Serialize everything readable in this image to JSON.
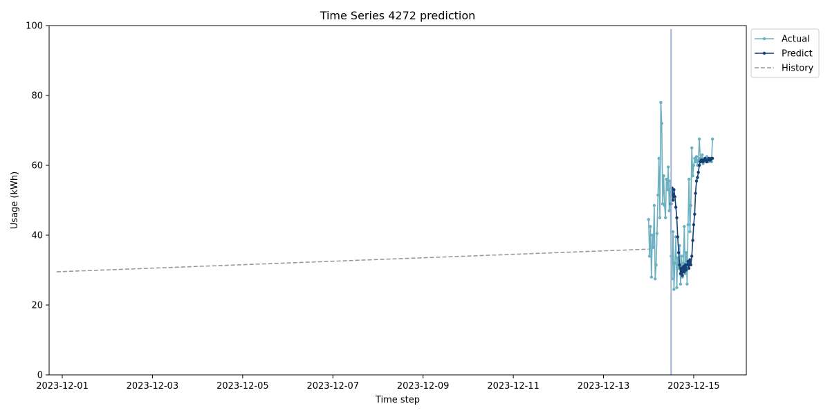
{
  "chart_data": {
    "type": "line",
    "title": "Time Series 4272 prediction",
    "xlabel": "Time step",
    "ylabel": "Usage (kWh)",
    "x_range": [
      "2023-11-30T00:00",
      "2023-12-16T00:00"
    ],
    "xlim": [
      "2023-11-30T17:00",
      "2023-12-16T04:00"
    ],
    "ylim": [
      0,
      100
    ],
    "x_tick_labels": [
      "2023-12-01",
      "2023-12-03",
      "2023-12-05",
      "2023-12-07",
      "2023-12-09",
      "2023-12-11",
      "2023-12-13",
      "2023-12-15"
    ],
    "y_tick_labels": [
      "0",
      "20",
      "40",
      "60",
      "80",
      "100"
    ],
    "y_ticks": [
      0,
      20,
      40,
      60,
      80,
      100
    ],
    "grid": false,
    "legend_position": "outside top-right",
    "vertical_marker": {
      "x": "2023-12-14T12:00",
      "y_range": [
        0,
        99
      ],
      "color": "#9fb3d3"
    },
    "series": [
      {
        "name": "History",
        "color": "#999999",
        "style": "dashed",
        "x": [
          "2023-11-30T21:00",
          "2023-12-14T00:00"
        ],
        "y": [
          29.5,
          36.0
        ]
      },
      {
        "name": "Actual",
        "color": "#6ab0c0",
        "style": "solid-markers",
        "x": [
          "2023-12-14T00:00",
          "2023-12-14T00:30",
          "2023-12-14T01:00",
          "2023-12-14T01:30",
          "2023-12-14T02:00",
          "2023-12-14T02:30",
          "2023-12-14T03:00",
          "2023-12-14T03:30",
          "2023-12-14T04:00",
          "2023-12-14T04:30",
          "2023-12-14T05:00",
          "2023-12-14T05:30",
          "2023-12-14T06:00",
          "2023-12-14T06:30",
          "2023-12-14T07:00",
          "2023-12-14T07:30",
          "2023-12-14T08:00",
          "2023-12-14T08:30",
          "2023-12-14T09:00",
          "2023-12-14T09:30",
          "2023-12-14T10:00",
          "2023-12-14T10:30",
          "2023-12-14T11:00",
          "2023-12-14T11:30",
          "2023-12-14T12:00",
          "2023-12-14T12:30",
          "2023-12-14T13:00",
          "2023-12-14T13:30",
          "2023-12-14T14:00",
          "2023-12-14T14:30",
          "2023-12-14T15:00",
          "2023-12-14T15:30",
          "2023-12-14T16:00",
          "2023-12-14T16:30",
          "2023-12-14T17:00",
          "2023-12-14T17:30",
          "2023-12-14T18:00",
          "2023-12-14T18:30",
          "2023-12-14T19:00",
          "2023-12-14T19:30",
          "2023-12-14T20:00",
          "2023-12-14T20:30",
          "2023-12-14T21:00",
          "2023-12-14T21:30",
          "2023-12-14T22:00",
          "2023-12-14T22:30",
          "2023-12-14T23:00",
          "2023-12-14T23:30",
          "2023-12-15T00:00",
          "2023-12-15T00:30",
          "2023-12-15T01:00",
          "2023-12-15T01:30",
          "2023-12-15T02:00",
          "2023-12-15T02:30",
          "2023-12-15T03:00",
          "2023-12-15T03:30",
          "2023-12-15T04:00",
          "2023-12-15T04:30",
          "2023-12-15T05:00",
          "2023-12-15T05:30",
          "2023-12-15T06:00",
          "2023-12-15T06:30",
          "2023-12-15T07:00",
          "2023-12-15T07:30",
          "2023-12-15T08:00",
          "2023-12-15T08:30",
          "2023-12-15T09:00",
          "2023-12-15T09:30",
          "2023-12-15T10:00"
        ],
        "y": [
          44.5,
          34.0,
          42.5,
          28.0,
          40.0,
          36.5,
          48.5,
          27.5,
          31.5,
          40.5,
          51.5,
          62.0,
          45.0,
          78.0,
          72.0,
          49.0,
          57.0,
          48.5,
          45.0,
          56.0,
          53.0,
          59.5,
          47.0,
          55.5,
          34.0,
          27.5,
          41.0,
          24.5,
          32.0,
          39.5,
          25.0,
          33.5,
          30.5,
          37.0,
          26.0,
          34.0,
          28.0,
          32.0,
          42.5,
          29.0,
          35.0,
          26.0,
          43.0,
          56.0,
          41.0,
          48.5,
          65.0,
          57.0,
          60.0,
          62.0,
          61.0,
          62.5,
          60.0,
          61.5,
          67.5,
          62.0,
          61.0,
          63.0,
          60.5,
          61.5,
          62.0,
          61.0,
          62.5,
          61.5,
          61.0,
          62.0,
          61.5,
          61.0,
          67.5
        ]
      },
      {
        "name": "Predict",
        "color": "#163f72",
        "style": "solid-markers",
        "x": [
          "2023-12-14T12:00",
          "2023-12-14T12:30",
          "2023-12-14T13:00",
          "2023-12-14T13:30",
          "2023-12-14T14:00",
          "2023-12-14T14:30",
          "2023-12-14T15:00",
          "2023-12-14T15:30",
          "2023-12-14T16:00",
          "2023-12-14T16:30",
          "2023-12-14T17:00",
          "2023-12-14T17:30",
          "2023-12-14T18:00",
          "2023-12-14T18:30",
          "2023-12-14T19:00",
          "2023-12-14T19:30",
          "2023-12-14T20:00",
          "2023-12-14T20:30",
          "2023-12-14T21:00",
          "2023-12-14T21:30",
          "2023-12-14T22:00",
          "2023-12-14T22:30",
          "2023-12-14T23:00",
          "2023-12-14T23:30",
          "2023-12-15T00:00",
          "2023-12-15T00:30",
          "2023-12-15T01:00",
          "2023-12-15T01:30",
          "2023-12-15T02:00",
          "2023-12-15T02:30",
          "2023-12-15T03:00",
          "2023-12-15T03:30",
          "2023-12-15T04:00",
          "2023-12-15T04:30",
          "2023-12-15T05:00",
          "2023-12-15T05:30",
          "2023-12-15T06:00",
          "2023-12-15T06:30",
          "2023-12-15T07:00",
          "2023-12-15T07:30",
          "2023-12-15T08:00",
          "2023-12-15T08:30",
          "2023-12-15T09:00",
          "2023-12-15T09:30",
          "2023-12-15T10:00"
        ],
        "y": [
          49.0,
          53.5,
          50.0,
          53.0,
          51.0,
          48.0,
          45.0,
          39.5,
          35.0,
          31.5,
          29.0,
          30.5,
          28.5,
          31.0,
          29.5,
          31.5,
          30.0,
          31.5,
          32.5,
          30.5,
          33.0,
          31.5,
          34.0,
          38.5,
          43.0,
          46.0,
          52.0,
          55.5,
          56.5,
          58.0,
          60.0,
          61.0,
          61.5,
          61.5,
          61.0,
          61.5,
          62.0,
          61.5,
          61.0,
          61.5,
          62.0,
          61.5,
          61.5,
          62.0,
          62.0
        ]
      }
    ]
  }
}
